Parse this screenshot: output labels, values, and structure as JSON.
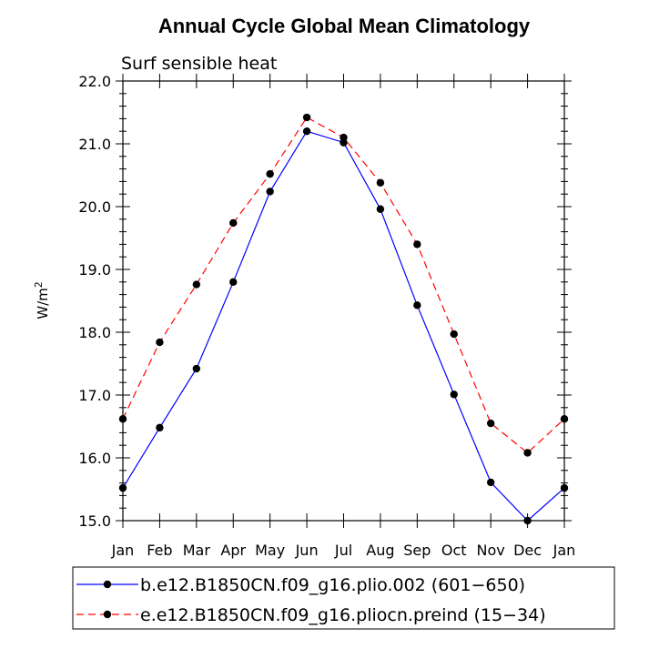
{
  "chart_data": {
    "type": "line",
    "title": "Annual Cycle Global Mean Climatology",
    "subtitle": "Surf sensible heat",
    "ylabel": "W/m",
    "ylabel_sup": "2",
    "xlabel": "",
    "categories": [
      "Jan",
      "Feb",
      "Mar",
      "Apr",
      "May",
      "Jun",
      "Jul",
      "Aug",
      "Sep",
      "Oct",
      "Nov",
      "Dec",
      "Jan"
    ],
    "ylim": [
      15.0,
      22.0
    ],
    "yticks": [
      "15.0",
      "16.0",
      "17.0",
      "18.0",
      "19.0",
      "20.0",
      "21.0",
      "22.0"
    ],
    "series": [
      {
        "name": "b.e12.B1850CN.f09_g16.plio.002 (601−650)",
        "color": "#0000ff",
        "dash": "solid",
        "values": [
          15.52,
          16.48,
          17.42,
          18.8,
          20.24,
          21.2,
          21.02,
          19.96,
          18.43,
          17.01,
          15.61,
          15.0,
          15.52
        ]
      },
      {
        "name": "e.e12.B1850CN.f09_g16.pliocn.preind (15−34)",
        "color": "#ff0000",
        "dash": "dashed",
        "values": [
          16.62,
          17.84,
          18.76,
          19.74,
          20.52,
          21.42,
          21.1,
          20.38,
          19.4,
          17.97,
          16.55,
          16.08,
          16.62
        ]
      }
    ]
  }
}
